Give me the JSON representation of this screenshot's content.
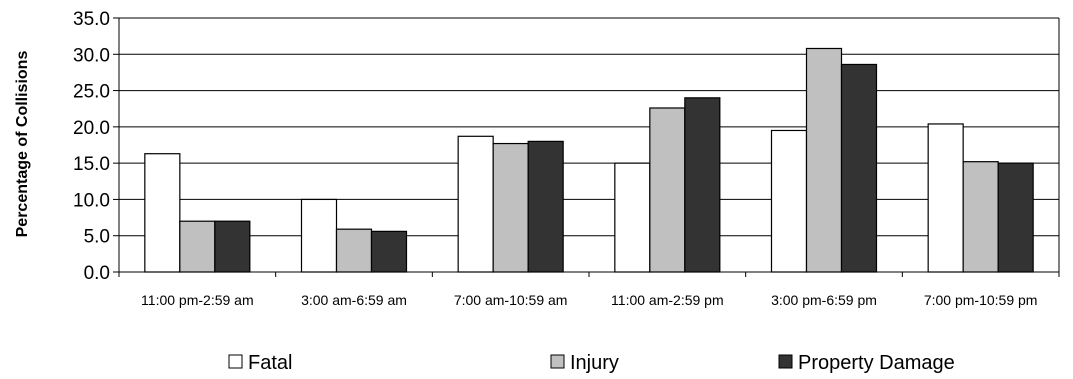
{
  "chart_data": {
    "type": "bar",
    "ylabel": "Percentage of Collisions",
    "xlabel": "",
    "title": "",
    "ylim": [
      0,
      35
    ],
    "ytick_step": 5,
    "ytick_labels": [
      "0.0",
      "5.0",
      "10.0",
      "15.0",
      "20.0",
      "25.0",
      "30.0",
      "35.0"
    ],
    "grid": true,
    "legend_position": "bottom",
    "categories": [
      "11:00 pm-2:59 am",
      "3:00 am-6:59 am",
      "7:00 am-10:59 am",
      "11:00 am-2:59 pm",
      "3:00 pm-6:59 pm",
      "7:00 pm-10:59 pm"
    ],
    "series": [
      {
        "name": "Fatal",
        "color": "#ffffff",
        "values": [
          16.3,
          10.0,
          18.7,
          15.0,
          19.5,
          20.4
        ]
      },
      {
        "name": "Injury",
        "color": "#c0c0c0",
        "values": [
          7.0,
          5.9,
          17.7,
          22.6,
          30.8,
          15.2
        ]
      },
      {
        "name": "Property Damage",
        "color": "#333333",
        "values": [
          7.0,
          5.6,
          18.0,
          24.0,
          28.6,
          15.0
        ]
      }
    ]
  }
}
